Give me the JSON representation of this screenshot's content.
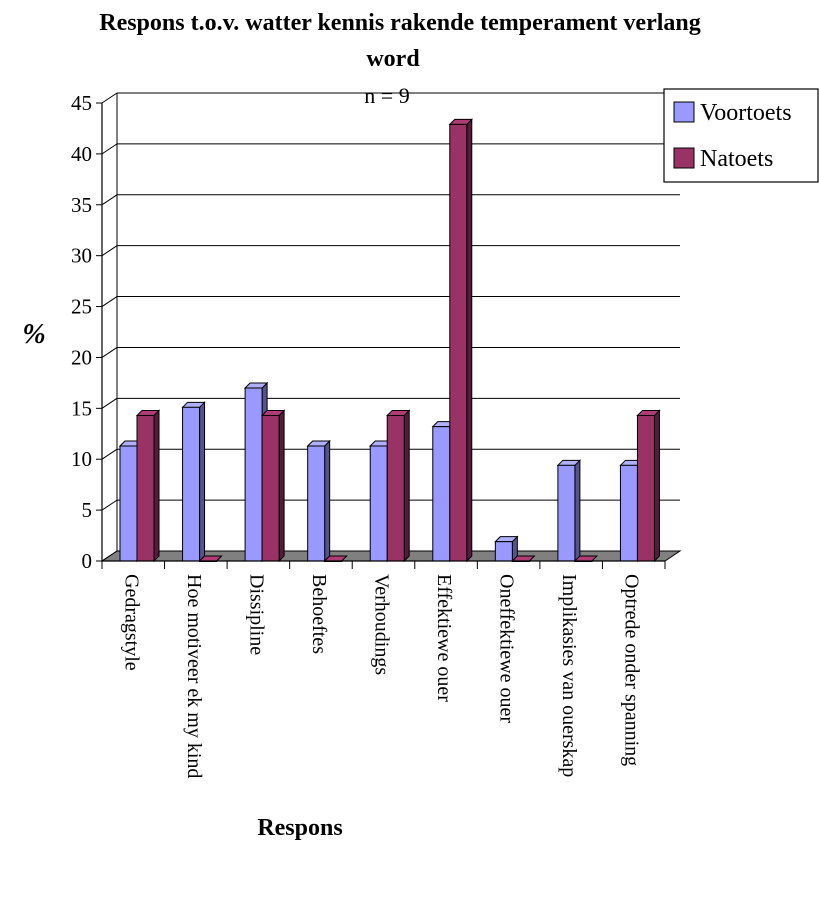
{
  "chart_data": {
    "type": "bar",
    "title": "Respons t.o.v. watter kennis rakende temperament verlang word",
    "title_lines": [
      "Respons t.o.v. watter kennis rakende temperament verlang",
      "word"
    ],
    "subtitle": "n = 9",
    "xlabel": "Respons",
    "ylabel": "%",
    "ylim": [
      0,
      45
    ],
    "yticks": [
      "0",
      "5",
      "10",
      "15",
      "20",
      "25",
      "30",
      "35",
      "40",
      "45"
    ],
    "grid": true,
    "legend_position": "top-right",
    "categories": [
      "Gedragstyle",
      "Hoe motiveer ek my kind",
      "Dissipline",
      "Behoeftes",
      "Verhoudings",
      "Effektiewe ouer",
      "Oneffektiewe ouer",
      "Implikasies van ouerskap",
      "Optrede onder spanning"
    ],
    "series": [
      {
        "name": "Voortoets",
        "color": "#9999ff",
        "values": [
          11.3,
          15.1,
          17.0,
          11.3,
          11.3,
          13.2,
          1.9,
          9.4,
          9.4
        ]
      },
      {
        "name": "Natoets",
        "color": "#993366",
        "values": [
          14.3,
          0,
          14.3,
          0,
          14.3,
          42.9,
          0,
          0,
          14.3
        ]
      }
    ]
  }
}
